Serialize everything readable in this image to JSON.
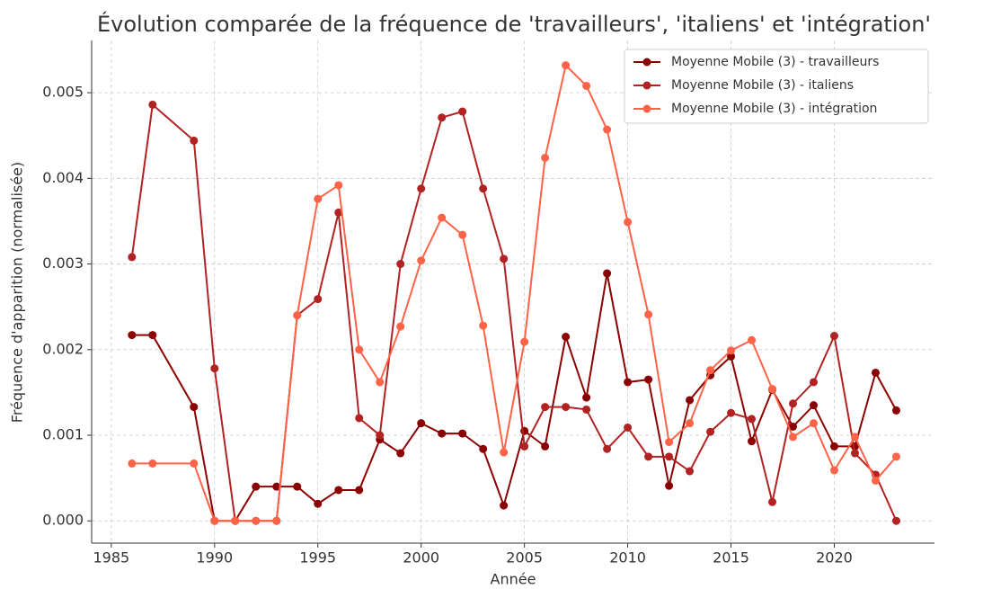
{
  "chart_data": {
    "type": "line",
    "title": "Évolution comparée de la fréquence de 'travailleurs', 'italiens' et 'intégration'",
    "xlabel": "Année",
    "ylabel": "Fréquence d'apparition (normalisée)",
    "x": [
      1986,
      1987,
      1989,
      1990,
      1991,
      1992,
      1993,
      1994,
      1995,
      1996,
      1997,
      1998,
      1999,
      2000,
      2001,
      2002,
      2003,
      2004,
      2005,
      2006,
      2007,
      2008,
      2009,
      2010,
      2011,
      2012,
      2013,
      2014,
      2015,
      2016,
      2017,
      2018,
      2019,
      2020,
      2021,
      2022,
      2023
    ],
    "series": [
      {
        "name": "Moyenne Mobile (3) - travailleurs",
        "color": "#8b0000",
        "values": [
          0.00217,
          0.00217,
          0.00133,
          0,
          0,
          0.0004,
          0.0004,
          0.0004,
          0.0002,
          0.00036,
          0.00036,
          0.00095,
          0.00079,
          0.00114,
          0.00102,
          0.00102,
          0.00084,
          0.00018,
          0.00105,
          0.00087,
          0.00215,
          0.00144,
          0.00289,
          0.00162,
          0.00165,
          0.00041,
          0.00141,
          0.0017,
          0.00192,
          0.00093,
          0.00153,
          0.0011,
          0.00135,
          0.00087,
          0.00087,
          0.00173,
          0.00129
        ]
      },
      {
        "name": "Moyenne Mobile (3) - italiens",
        "color": "#b22222",
        "values": [
          0.00308,
          0.00486,
          0.00444,
          0.00178,
          0,
          0,
          0,
          0.0024,
          0.00259,
          0.0036,
          0.0012,
          0.001,
          0.003,
          0.00388,
          0.00471,
          0.00478,
          0.00388,
          0.00306,
          0.00087,
          0.00133,
          0.00133,
          0.0013,
          0.00084,
          0.00109,
          0.00075,
          0.00075,
          0.00058,
          0.00104,
          0.00126,
          0.00119,
          0.00022,
          0.00137,
          0.00162,
          0.00216,
          0.00079,
          0.00054,
          0
        ]
      },
      {
        "name": "Moyenne Mobile (3) - intégration",
        "color": "#ff6347",
        "values": [
          0.00067,
          0.00067,
          0.00067,
          0,
          0,
          0,
          0,
          0.0024,
          0.00376,
          0.00392,
          0.002,
          0.00162,
          0.00227,
          0.00304,
          0.00354,
          0.00334,
          0.00228,
          0.0008,
          0.00209,
          0.00424,
          0.00532,
          0.00508,
          0.00457,
          0.00349,
          0.00241,
          0.00092,
          0.00114,
          0.00176,
          0.00199,
          0.00211,
          0.00154,
          0.00098,
          0.00114,
          0.00059,
          0.00098,
          0.00047,
          0.00075
        ]
      }
    ],
    "xlim": [
      1984.05,
      2024.85
    ],
    "xticks": [
      1985,
      1990,
      1995,
      2000,
      2005,
      2010,
      2015,
      2020
    ],
    "ylim": [
      -0.00026,
      0.00561
    ],
    "yticks": [
      {
        "value": 0,
        "label": "0.000"
      },
      {
        "value": 0.001,
        "label": "0.001"
      },
      {
        "value": 0.002,
        "label": "0.002"
      },
      {
        "value": 0.003,
        "label": "0.003"
      },
      {
        "value": 0.004,
        "label": "0.004"
      },
      {
        "value": 0.005,
        "label": "0.005"
      }
    ],
    "grid": true,
    "legend": "upper right"
  }
}
